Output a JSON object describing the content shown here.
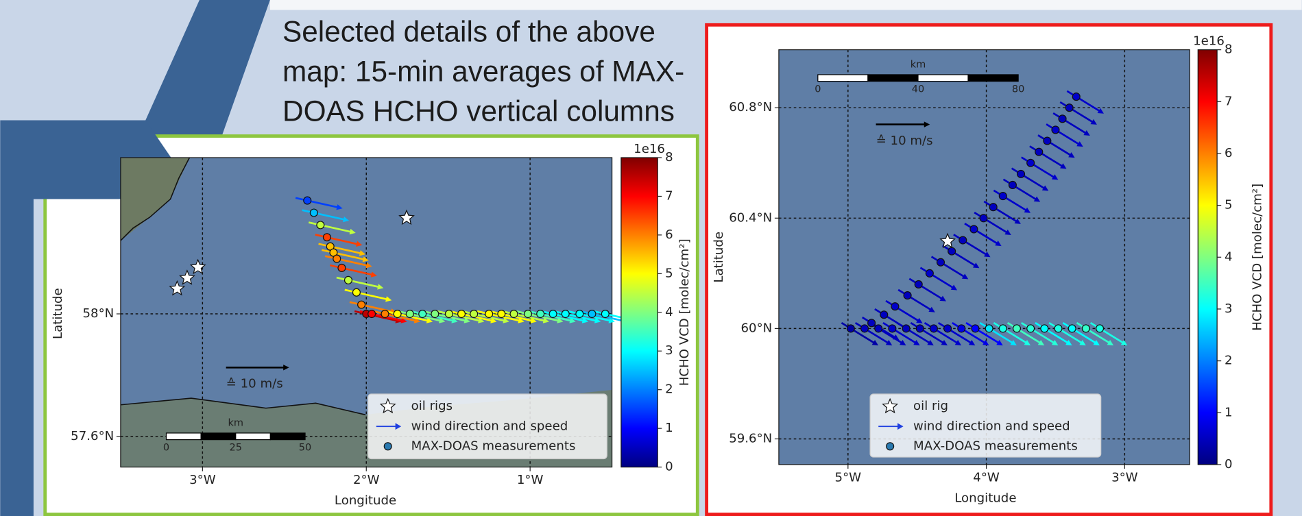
{
  "caption": [
    "Selected details of the above",
    "map: 15-min averages of MAX-",
    "DOAS HCHO vertical columns"
  ],
  "chart_data": [
    {
      "type": "scatter",
      "x_label": "Longitude",
      "y_label": "Latitude",
      "xlim": [
        -3.5,
        -0.5
      ],
      "ylim": [
        57.5,
        58.51
      ],
      "xticks": [
        {
          "value": -3,
          "label": "3°W"
        },
        {
          "value": -2,
          "label": "2°W"
        },
        {
          "value": -1,
          "label": "1°W"
        }
      ],
      "yticks": [
        {
          "value": 57.6,
          "label": "57.6°N"
        },
        {
          "value": 58,
          "label": "58°N"
        }
      ],
      "grid": true,
      "legend": "lower right",
      "colorbar": {
        "label": "HCHO VCD [molec/cm²]",
        "offset_label": "1e16",
        "lim": [
          0,
          8
        ],
        "ticks": [
          0,
          1,
          2,
          3,
          4,
          5,
          6,
          7,
          8
        ],
        "colormap": "jet"
      },
      "wind": {
        "name": "wind direction and speed",
        "reference_label": "≙ 10 m/s",
        "color": "#1f3fe0"
      },
      "scale_bar": {
        "label": "km",
        "ticks": [
          0,
          25,
          50
        ]
      },
      "series": [
        {
          "name": "MAX-DOAS measurements",
          "color": "#2a7ab0",
          "x": [
            -2.36,
            -2.32,
            -2.28,
            -2.24,
            -2.22,
            -2.2,
            -2.18,
            -2.15,
            -2.11,
            -2.06,
            -2.03,
            -2.0,
            -1.967,
            -1.886,
            -1.81,
            -1.734,
            -1.657,
            -1.581,
            -1.495,
            -1.419,
            -1.343,
            -1.251,
            -1.175,
            -1.099,
            -1.013,
            -0.937,
            -0.86,
            -0.784,
            -0.698,
            -0.622,
            -0.541
          ],
          "y": [
            58.37,
            58.33,
            58.29,
            58.25,
            58.22,
            58.2,
            58.18,
            58.15,
            58.11,
            58.07,
            58.03,
            58.0,
            58.0,
            58.0,
            58.0,
            58.0,
            58.0,
            58.0,
            58.0,
            58.0,
            58.0,
            58.0,
            58.0,
            58.0,
            58.0,
            58.0,
            58.0,
            58.0,
            58.0,
            58.0,
            58.0
          ],
          "values": [
            1.5,
            2.5,
            4.5,
            6.5,
            5.5,
            5.5,
            6.0,
            6.5,
            4.5,
            5.0,
            6.0,
            7.5,
            7.0,
            6.0,
            5.0,
            4.0,
            3.5,
            4.0,
            4.5,
            5.0,
            4.5,
            5.0,
            5.0,
            4.5,
            4.0,
            3.5,
            3.0,
            3.0,
            3.0,
            2.5,
            3.0
          ]
        },
        {
          "name": "oil rigs",
          "color": "#ffffff",
          "x": [
            -3.155,
            -3.094,
            -3.028,
            -1.754
          ],
          "y": [
            58.082,
            58.117,
            58.152,
            58.313
          ]
        }
      ]
    },
    {
      "type": "scatter",
      "x_label": "Longitude",
      "y_label": "Latitude",
      "xlim": [
        -5.5,
        -2.53
      ],
      "ylim": [
        59.507,
        61.01
      ],
      "xticks": [
        {
          "value": -5,
          "label": "5°W"
        },
        {
          "value": -4,
          "label": "4°W"
        },
        {
          "value": -3,
          "label": "3°W"
        }
      ],
      "yticks": [
        {
          "value": 59.6,
          "label": "59.6°N"
        },
        {
          "value": 60,
          "label": "60°N"
        },
        {
          "value": 60.4,
          "label": "60.4°N"
        },
        {
          "value": 60.8,
          "label": "60.8°N"
        }
      ],
      "grid": true,
      "legend": "lower center",
      "colorbar": {
        "label": "HCHO VCD [molec/cm²]",
        "offset_label": "1e16",
        "lim": [
          0,
          8
        ],
        "ticks": [
          0,
          1,
          2,
          3,
          4,
          5,
          6,
          7,
          8
        ],
        "colormap": "jet"
      },
      "wind": {
        "name": "wind direction and speed",
        "reference_label": "≙ 10 m/s",
        "color": "#1f3fe0"
      },
      "scale_bar": {
        "label": "km",
        "ticks": [
          0,
          40,
          80
        ]
      },
      "series": [
        {
          "name": "MAX-DOAS measurements",
          "color": "#2a7ab0",
          "x": [
            -3.35,
            -3.4,
            -3.45,
            -3.5,
            -3.56,
            -3.62,
            -3.68,
            -3.75,
            -3.81,
            -3.88,
            -3.95,
            -4.02,
            -4.09,
            -4.17,
            -4.25,
            -4.33,
            -4.41,
            -4.49,
            -4.57,
            -4.66,
            -4.74,
            -4.83,
            -4.98,
            -4.88,
            -4.78,
            -4.68,
            -4.58,
            -4.48,
            -4.38,
            -4.28,
            -4.18,
            -4.08,
            -3.98,
            -3.88,
            -3.78,
            -3.68,
            -3.58,
            -3.48,
            -3.38,
            -3.28,
            -3.18
          ],
          "y": [
            60.84,
            60.8,
            60.76,
            60.72,
            60.68,
            60.64,
            60.6,
            60.56,
            60.52,
            60.48,
            60.44,
            60.4,
            60.36,
            60.32,
            60.28,
            60.24,
            60.2,
            60.16,
            60.12,
            60.08,
            60.05,
            60.02,
            60.0,
            60.0,
            60.0,
            60.0,
            60.0,
            60.0,
            60.0,
            60.0,
            60.0,
            60.0,
            60.0,
            60.0,
            60.0,
            60.0,
            60.0,
            60.0,
            60.0,
            60.0,
            60.0
          ],
          "values": [
            0.6,
            0.5,
            0.5,
            0.6,
            0.5,
            0.5,
            0.6,
            0.5,
            0.5,
            0.6,
            0.5,
            0.5,
            0.6,
            0.5,
            0.5,
            0.5,
            0.6,
            0.5,
            0.5,
            0.6,
            0.5,
            0.5,
            0.3,
            0.5,
            0.5,
            0.6,
            0.5,
            0.5,
            0.6,
            0.6,
            0.8,
            1.0,
            2.8,
            3.2,
            3.5,
            3.3,
            3.0,
            3.2,
            3.0,
            3.4,
            3.2
          ]
        },
        {
          "name": "oil rig",
          "color": "#ffffff",
          "x": [
            -4.28
          ],
          "y": [
            60.316
          ]
        }
      ]
    }
  ]
}
